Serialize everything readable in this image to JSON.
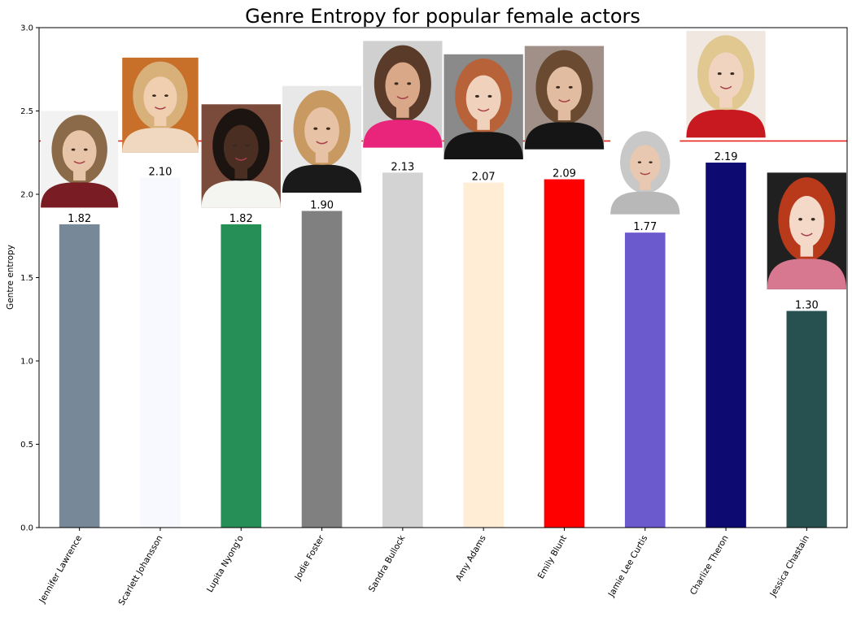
{
  "chart_data": {
    "type": "bar",
    "title": "Genre Entropy for popular female actors",
    "xlabel": "",
    "ylabel": "Gentre entropy",
    "ylim": [
      0,
      3.0
    ],
    "yticks": [
      "0.0",
      "0.5",
      "1.0",
      "1.5",
      "2.0",
      "2.5",
      "3.0"
    ],
    "ytick_values": [
      0,
      0.5,
      1.0,
      1.5,
      2.0,
      2.5,
      3.0
    ],
    "reference_line": {
      "value": 2.32,
      "color": "#e8251e"
    },
    "categories": [
      "Jennifer Lawrence",
      "Scarlett Johansson",
      "Lupita Nyong'o",
      "Jodie Foster",
      "Sandra Bullock",
      "Amy Adams",
      "Emily Blunt",
      "Jamie Lee Curtis",
      "Charlize Theron",
      "Jessica Chastain"
    ],
    "values": [
      1.82,
      2.1,
      1.82,
      1.9,
      2.13,
      2.07,
      2.09,
      1.77,
      2.19,
      1.3
    ],
    "value_labels": [
      "1.82",
      "2.10",
      "1.82",
      "1.90",
      "2.13",
      "2.07",
      "2.09",
      "1.77",
      "2.19",
      "1.30"
    ],
    "colors": [
      "#778899",
      "#f8f8ff",
      "#268e57",
      "#808080",
      "#d3d3d3",
      "#ffedd6",
      "#ff0000",
      "#6a5acd",
      "#0d0a72",
      "#275050"
    ],
    "portraits": [
      {
        "name": "jennifer-lawrence-portrait-icon",
        "bottom": 1.92,
        "top": 2.5,
        "skin": "#e8c4a8",
        "hair": "#8a6a48",
        "bg": "#f2f2f2",
        "cloth": "#7a1c24"
      },
      {
        "name": "scarlett-johansson-portrait-icon",
        "bottom": 2.25,
        "top": 2.82,
        "skin": "#f0cfb0",
        "hair": "#d8b07a",
        "bg": "#c8702a",
        "cloth": "#f0d8c0"
      },
      {
        "name": "lupita-nyongo-portrait-icon",
        "bottom": 1.92,
        "top": 2.54,
        "skin": "#4a2e22",
        "hair": "#1c1410",
        "bg": "#7a4a3a",
        "cloth": "#f4f4f0"
      },
      {
        "name": "jodie-foster-portrait-icon",
        "bottom": 2.01,
        "top": 2.65,
        "skin": "#e8c2a4",
        "hair": "#c89a62",
        "bg": "#e8e8e8",
        "cloth": "#1a1a1a"
      },
      {
        "name": "sandra-bullock-portrait-icon",
        "bottom": 2.28,
        "top": 2.92,
        "skin": "#d8a888",
        "hair": "#5a3a28",
        "bg": "#d0d0d0",
        "cloth": "#e8257a"
      },
      {
        "name": "amy-adams-portrait-icon",
        "bottom": 2.21,
        "top": 2.84,
        "skin": "#f0d2bc",
        "hair": "#b8623a",
        "bg": "#8a8a8a",
        "cloth": "#151515"
      },
      {
        "name": "emily-blunt-portrait-icon",
        "bottom": 2.27,
        "top": 2.89,
        "skin": "#e2bca0",
        "hair": "#6a4a30",
        "bg": "#a09088",
        "cloth": "#151515"
      },
      {
        "name": "jamie-lee-curtis-portrait-icon",
        "bottom": 1.88,
        "top": 2.4,
        "skin": "#e8c8b0",
        "hair": "#c8c8c8",
        "bg": "#ffffff",
        "cloth": "#b8b8b8"
      },
      {
        "name": "charlize-theron-portrait-icon",
        "bottom": 2.34,
        "top": 2.98,
        "skin": "#f0d4c0",
        "hair": "#e0c890",
        "bg": "#f0e8e0",
        "cloth": "#c81820"
      },
      {
        "name": "jessica-chastain-portrait-icon",
        "bottom": 1.43,
        "top": 2.13,
        "skin": "#f4d8c8",
        "hair": "#b83a1a",
        "bg": "#202020",
        "cloth": "#d87890"
      }
    ]
  }
}
